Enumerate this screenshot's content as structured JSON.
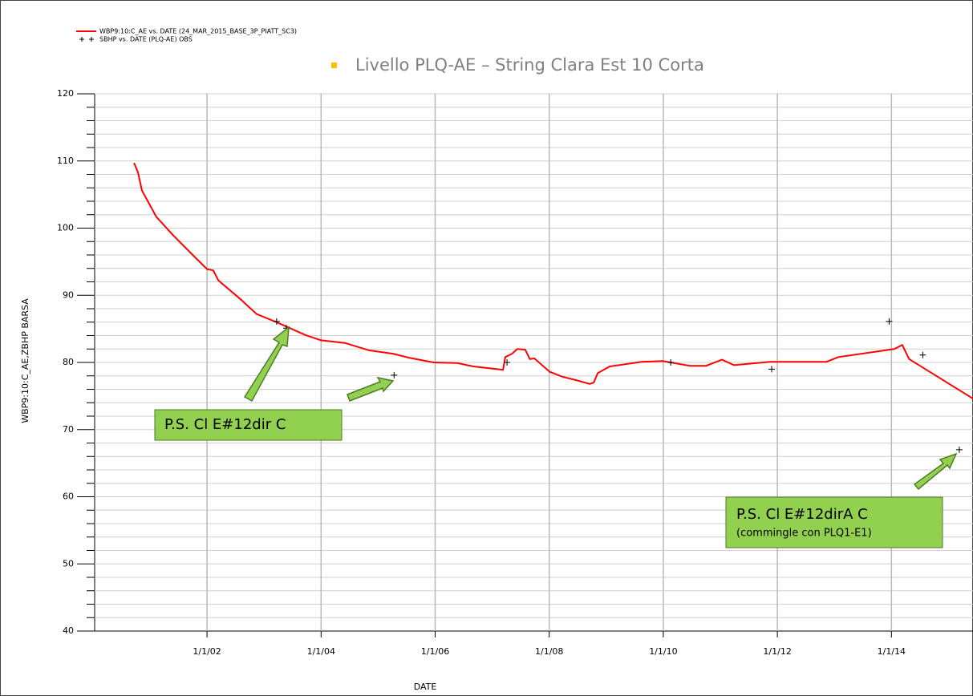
{
  "chart_data": {
    "type": "line",
    "title": "Livello PLQ-AE – String Clara Est 10 Corta",
    "xlabel": "DATE",
    "ylabel": "WBP9:10:C_AE,ZBHP   BARSA",
    "xlim": [
      2000.03,
      2015.43
    ],
    "ylim": [
      40,
      120
    ],
    "xticks": [
      {
        "value": 2002,
        "label": "1/1/02"
      },
      {
        "value": 2004,
        "label": "1/1/04"
      },
      {
        "value": 2006,
        "label": "1/1/06"
      },
      {
        "value": 2008,
        "label": "1/1/08"
      },
      {
        "value": 2010,
        "label": "1/1/10"
      },
      {
        "value": 2012,
        "label": "1/1/12"
      },
      {
        "value": 2014,
        "label": "1/1/14"
      }
    ],
    "yticks": [
      40,
      50,
      60,
      70,
      80,
      90,
      100,
      110,
      120
    ],
    "grid": true,
    "legend": "top-left",
    "series": [
      {
        "name": "WBP9:10:C_AE  vs.  DATE (24_MAR_2015_BASE_3P_PIATT_SC3)",
        "color": "#ff0000",
        "style": "line",
        "x": [
          2000.72,
          2000.79,
          2000.86,
          2001.11,
          2001.4,
          2001.75,
          2002.0,
          2002.11,
          2002.2,
          2002.59,
          2002.87,
          2003.22,
          2003.72,
          2004.0,
          2004.42,
          2004.84,
          2005.26,
          2005.54,
          2005.97,
          2006.39,
          2006.67,
          2007.09,
          2007.19,
          2007.23,
          2007.35,
          2007.44,
          2007.58,
          2007.66,
          2007.74,
          2008.01,
          2008.22,
          2008.5,
          2008.71,
          2008.78,
          2008.85,
          2009.06,
          2009.62,
          2009.99,
          2010.47,
          2010.75,
          2011.03,
          2011.24,
          2011.87,
          2012.86,
          2013.07,
          2014.05,
          2014.19,
          2014.31,
          2015.43
        ],
        "values": [
          109.7,
          108.3,
          105.6,
          101.7,
          99.0,
          96.0,
          93.9,
          93.7,
          92.2,
          89.4,
          87.2,
          86.0,
          84.1,
          83.3,
          82.9,
          81.8,
          81.3,
          80.7,
          80.0,
          79.9,
          79.4,
          79.0,
          78.9,
          80.8,
          81.3,
          82.0,
          81.9,
          80.5,
          80.6,
          78.6,
          77.9,
          77.3,
          76.8,
          77.0,
          78.4,
          79.4,
          80.1,
          80.2,
          79.5,
          79.5,
          80.4,
          79.6,
          80.1,
          80.1,
          80.8,
          82.0,
          82.6,
          80.5,
          74.6
        ]
      },
      {
        "name": "SBHP  vs.  DATE (PLQ-AE) OBS",
        "color": "#000000",
        "style": "markers",
        "x": [
          2003.22,
          2003.39,
          2005.28,
          2007.26,
          2010.13,
          2011.9,
          2013.96,
          2014.55,
          2015.19
        ],
        "values": [
          86.1,
          85.1,
          78.1,
          80.0,
          80.0,
          79.0,
          86.1,
          81.1,
          67.0
        ]
      }
    ],
    "annotations": [
      "P.S. Cl E#12dir C",
      "P.S. Cl E#12dirA C",
      "(commingle con PLQ1-E1)"
    ]
  }
}
